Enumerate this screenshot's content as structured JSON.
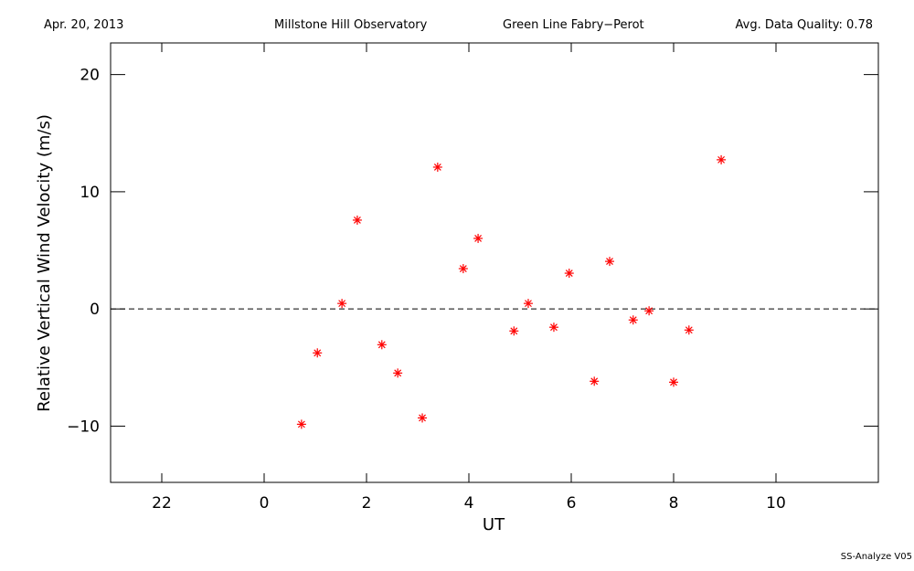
{
  "chart_data": {
    "type": "scatter",
    "header": {
      "date": "Apr. 20, 2013",
      "site": "Millstone Hill Observatory",
      "instrument": "Green Line Fabry−Perot",
      "quality": "Avg. Data Quality: 0.78"
    },
    "footer": "SS-Analyze V05",
    "xlabel": "UT",
    "ylabel": "Relative Vertical Wind Velocity (m/s)",
    "xlim": [
      -3,
      12
    ],
    "ylim": [
      -14.8,
      22.7
    ],
    "xticks": [
      {
        "value": -2,
        "label": "22"
      },
      0,
      2,
      4,
      6,
      8,
      10
    ],
    "yticks": [
      {
        "value": -10,
        "label": "−10"
      },
      0,
      10,
      20
    ],
    "reference_line": 0,
    "color": "#ff0000",
    "x": [
      0.73,
      1.04,
      1.52,
      1.82,
      2.3,
      2.61,
      3.09,
      3.39,
      3.89,
      4.18,
      4.88,
      5.16,
      5.66,
      5.96,
      6.45,
      6.75,
      7.21,
      7.52,
      8.0,
      8.3,
      8.93
    ],
    "values": [
      -9.84,
      -3.75,
      0.47,
      7.58,
      -3.05,
      -5.47,
      -9.3,
      12.1,
      3.44,
      6.02,
      -1.88,
      0.47,
      -1.56,
      3.05,
      -6.17,
      4.06,
      -0.94,
      -0.16,
      -6.25,
      -1.8,
      12.73
    ]
  }
}
